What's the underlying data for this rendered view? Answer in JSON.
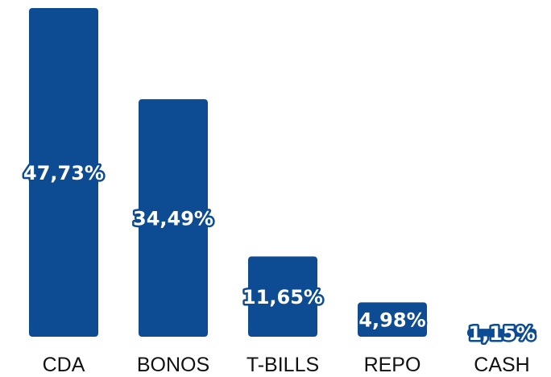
{
  "chart_data": {
    "type": "bar",
    "categories": [
      "CDA",
      "BONOS",
      "T-BILLS",
      "REPO",
      "CASH"
    ],
    "values": [
      47.73,
      34.49,
      11.65,
      4.98,
      1.15
    ],
    "data_labels": [
      "47,73%",
      "34,49%",
      "11,65%",
      "4,98%",
      "1,15%"
    ],
    "title": "",
    "xlabel": "",
    "ylabel": "",
    "ylim": [
      0,
      47.73
    ],
    "grid": false,
    "legend": "none",
    "colors": {
      "bar": "#0d4c92",
      "label_text": "#ffffff",
      "axis_text": "#111111"
    }
  }
}
